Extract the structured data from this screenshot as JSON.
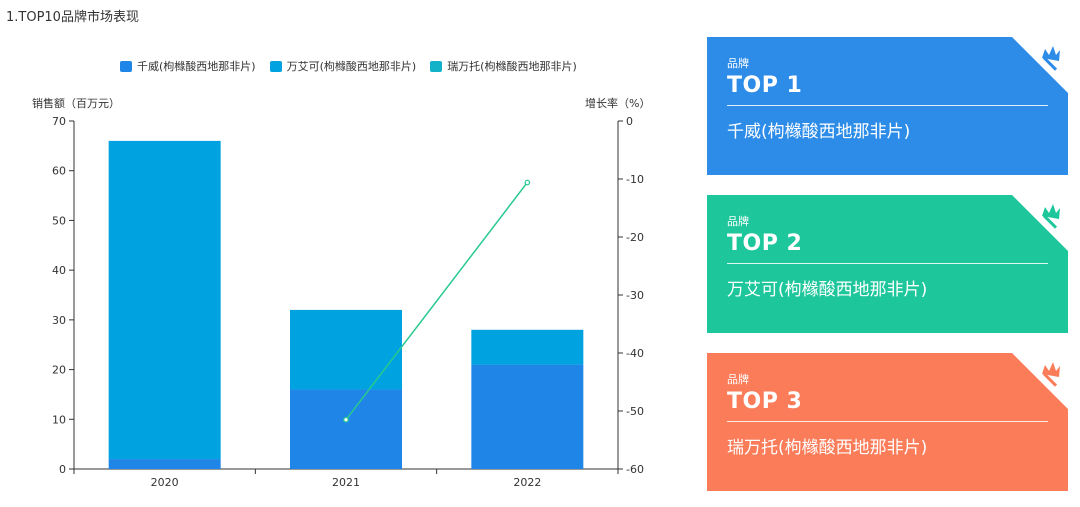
{
  "section_title": "1.TOP10品牌市场表现",
  "colors": {
    "qianwei": "#1f86e8",
    "wanaike": "#00a3e0",
    "ruiwantuo": "#14b2c9",
    "growth_line": "#28c98f",
    "card_blue": "#2d8ce8",
    "card_green": "#1ec79b",
    "card_orange": "#fa7c59"
  },
  "chart_data": {
    "type": "bar",
    "categories": [
      "2020",
      "2021",
      "2022"
    ],
    "series": [
      {
        "name": "千威(枸橼酸西地那非片)",
        "type": "bar",
        "stack": "brand",
        "values": [
          2,
          16,
          21
        ]
      },
      {
        "name": "万艾可(枸橼酸西地那非片)",
        "type": "bar",
        "stack": "brand",
        "values": [
          64,
          16,
          7
        ]
      },
      {
        "name": "瑞万托(枸橼酸西地那非片)",
        "type": "bar",
        "stack": "brand",
        "values": [
          0,
          0,
          0
        ]
      },
      {
        "name": "",
        "type": "line",
        "axis": "right",
        "values": [
          null,
          -51.5,
          -10.6
        ]
      }
    ],
    "ylabel": "销售额（百万元）",
    "ylabel_right": "增长率（%）",
    "ylim": [
      0,
      70
    ],
    "ylim_right": [
      -60,
      0
    ],
    "yticks": [
      0,
      10,
      20,
      30,
      40,
      50,
      60,
      70
    ],
    "yticks_right": [
      0,
      -10,
      -20,
      -30,
      -40,
      -50,
      -60
    ],
    "legend_position": "top-center",
    "grid": false
  },
  "cards": [
    {
      "sub": "品牌",
      "rank": "TOP 1",
      "name": "千威(枸橼酸西地那非片)"
    },
    {
      "sub": "品牌",
      "rank": "TOP 2",
      "name": "万艾可(枸橼酸西地那非片)"
    },
    {
      "sub": "品牌",
      "rank": "TOP 3",
      "name": "瑞万托(枸橼酸西地那非片)"
    }
  ],
  "icons": {
    "card_corner": "crown-icon"
  }
}
